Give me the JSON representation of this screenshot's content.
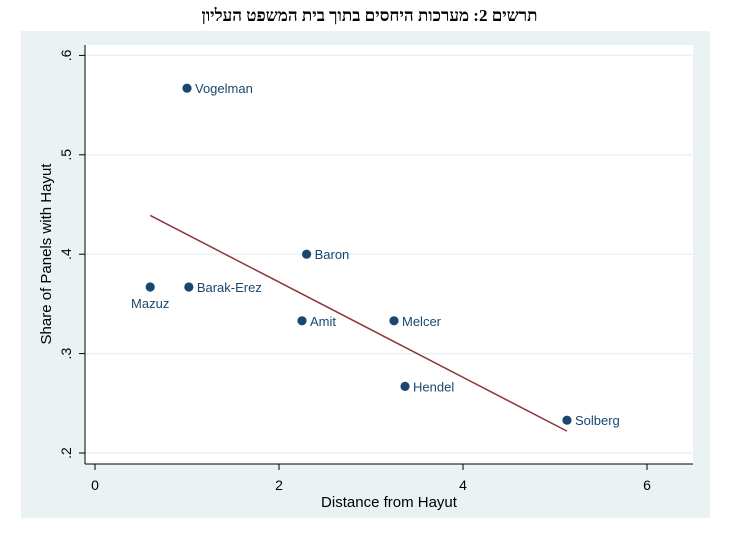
{
  "figure_caption": "תרשים 2: מערכות היחסים בתוך בית המשפט העליון",
  "chart_data": {
    "type": "scatter",
    "xlabel": "Distance from Hayut",
    "ylabel": "Share of Panels with Hayut",
    "xlim": [
      -0.1,
      6.5
    ],
    "ylim": [
      0.195,
      0.61
    ],
    "x_ticks": [
      0,
      2,
      4,
      6
    ],
    "x_tick_labels": [
      "0",
      "2",
      "4",
      "6"
    ],
    "y_ticks": [
      0.2,
      0.3,
      0.4,
      0.5,
      0.6
    ],
    "y_tick_labels": [
      ".2",
      ".3",
      ".4",
      ".5",
      ".6"
    ],
    "grid": "horizontal",
    "points": [
      {
        "label": "Vogelman",
        "x": 1.0,
        "y": 0.567,
        "label_pos": "right"
      },
      {
        "label": "Baron",
        "x": 2.3,
        "y": 0.4,
        "label_pos": "right"
      },
      {
        "label": "Mazuz",
        "x": 0.6,
        "y": 0.367,
        "label_pos": "below"
      },
      {
        "label": "Barak-Erez",
        "x": 1.02,
        "y": 0.367,
        "label_pos": "right"
      },
      {
        "label": "Amit",
        "x": 2.25,
        "y": 0.333,
        "label_pos": "right"
      },
      {
        "label": "Melcer",
        "x": 3.25,
        "y": 0.333,
        "label_pos": "right"
      },
      {
        "label": "Hendel",
        "x": 3.37,
        "y": 0.267,
        "label_pos": "right"
      },
      {
        "label": "Solberg",
        "x": 5.13,
        "y": 0.233,
        "label_pos": "right"
      }
    ],
    "fit_line": {
      "x": [
        0.6,
        5.13
      ],
      "y": [
        0.439,
        0.222
      ]
    },
    "colors": {
      "point": "#1a476f",
      "fit_line": "#90353b",
      "outer_background": "#eaf2f3",
      "plot_background": "#ffffff",
      "grid": "#eaf2f3"
    }
  }
}
